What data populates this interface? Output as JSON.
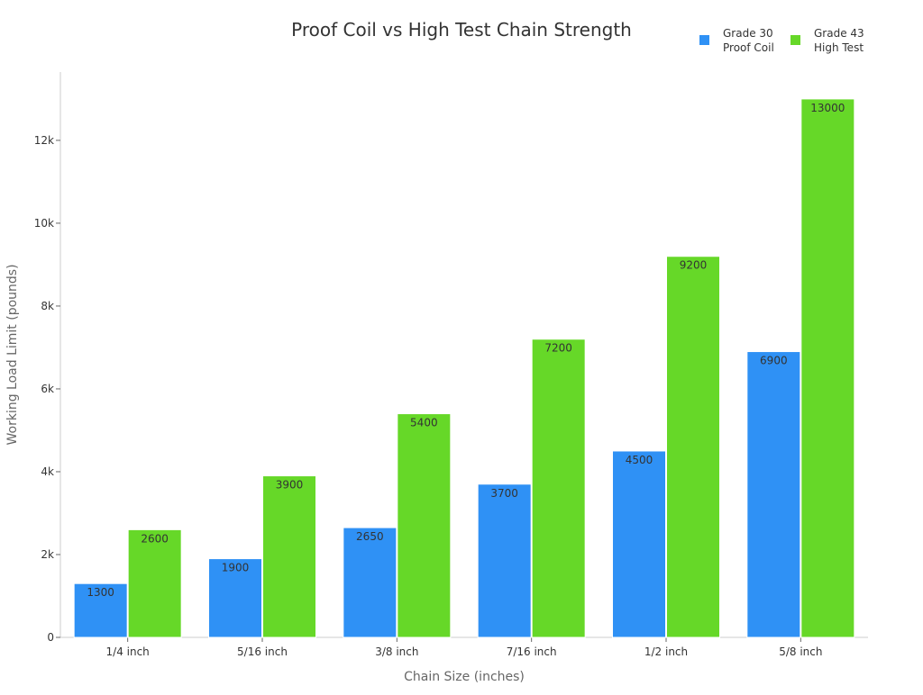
{
  "chart_data": {
    "type": "bar",
    "title": "Proof Coil vs High Test Chain Strength",
    "xlabel": "Chain Size (inches)",
    "ylabel": "Working Load Limit (pounds)",
    "categories": [
      "1/4 inch",
      "5/16 inch",
      "3/8 inch",
      "7/16 inch",
      "1/2 inch",
      "5/8 inch"
    ],
    "series": [
      {
        "name": "Grade 30\nProof Coil",
        "color": "#2f91f5",
        "values": [
          1300,
          1900,
          2650,
          3700,
          4500,
          6900
        ]
      },
      {
        "name": "Grade 43\nHigh Test",
        "color": "#66d828",
        "values": [
          2600,
          3900,
          5400,
          7200,
          9200,
          13000
        ]
      }
    ],
    "ylim": [
      0,
      13650
    ],
    "yticks": [
      0,
      2000,
      4000,
      6000,
      8000,
      10000,
      12000
    ],
    "ytick_labels": [
      "0",
      "2k",
      "4k",
      "6k",
      "8k",
      "10k",
      "12k"
    ],
    "grid": false,
    "legend_position": "top-right",
    "data_labels": true
  }
}
